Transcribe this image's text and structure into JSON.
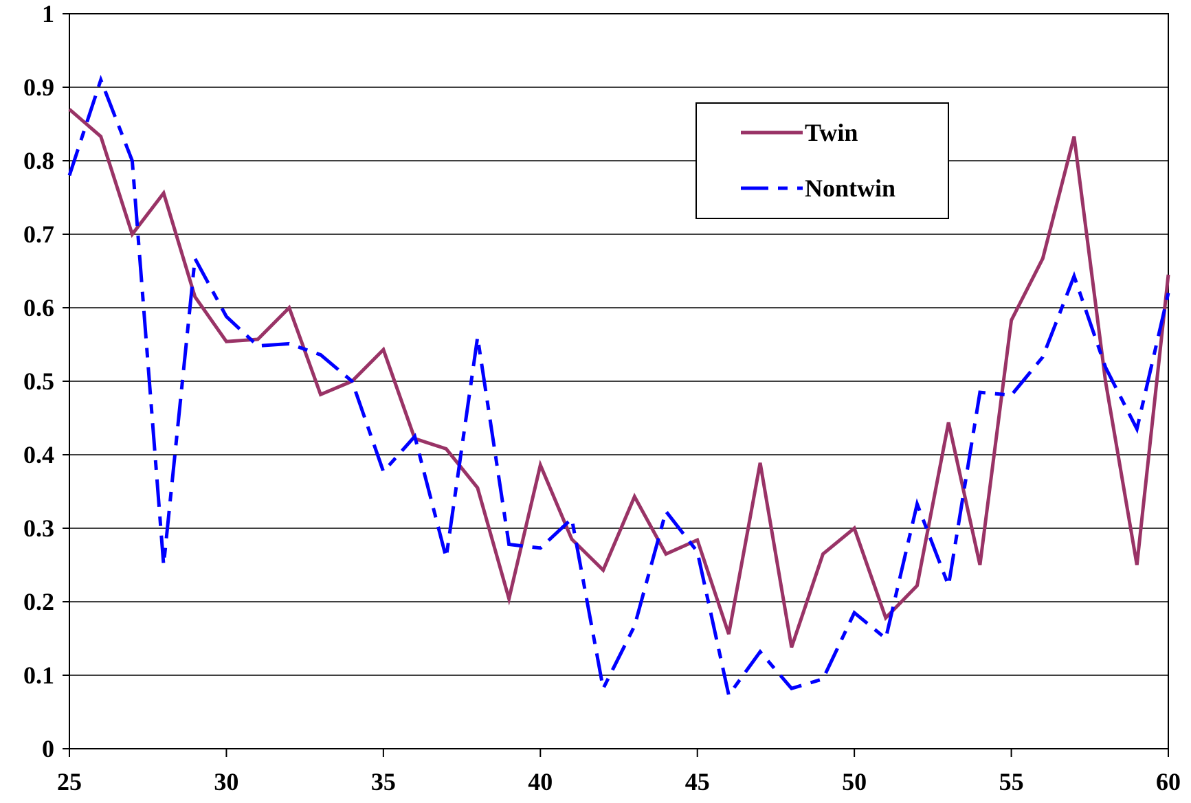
{
  "chart_data": {
    "type": "line",
    "title": "",
    "xlabel": "",
    "ylabel": "",
    "xlim": [
      25,
      60
    ],
    "ylim": [
      0,
      1
    ],
    "x_ticks": [
      25,
      30,
      35,
      40,
      45,
      50,
      55,
      60
    ],
    "y_ticks": [
      0,
      0.1,
      0.2,
      0.3,
      0.4,
      0.5,
      0.6,
      0.7,
      0.8,
      0.9,
      1
    ],
    "y_tick_labels": [
      "0",
      "0.1",
      "0.2",
      "0.3",
      "0.4",
      "0.5",
      "0.6",
      "0.7",
      "0.8",
      "0.9",
      "1"
    ],
    "x_tick_labels": [
      "25",
      "30",
      "35",
      "40",
      "45",
      "50",
      "55",
      "60"
    ],
    "grid": "horizontal",
    "legend": {
      "placement": "top-right",
      "entries": [
        "Twin",
        "Nontwin"
      ]
    },
    "x": [
      25,
      26,
      27,
      28,
      29,
      30,
      31,
      32,
      33,
      34,
      35,
      36,
      37,
      38,
      39,
      40,
      41,
      42,
      43,
      44,
      45,
      46,
      47,
      48,
      49,
      50,
      51,
      52,
      53,
      54,
      55,
      56,
      57,
      58,
      59,
      60
    ],
    "series": [
      {
        "name": "Twin",
        "color": "#993366",
        "style": "solid",
        "values": [
          0.87,
          0.833,
          0.7,
          0.756,
          0.615,
          0.554,
          0.557,
          0.6,
          0.482,
          0.5,
          0.543,
          0.422,
          0.408,
          0.355,
          0.204,
          0.386,
          0.285,
          0.243,
          0.343,
          0.265,
          0.284,
          0.156,
          0.389,
          0.138,
          0.265,
          0.3,
          0.178,
          0.222,
          0.444,
          0.25,
          0.583,
          0.667,
          0.833,
          0.5,
          0.25,
          0.645
        ]
      },
      {
        "name": "Nontwin",
        "color": "#0000ff",
        "style": "dashed",
        "values": [
          0.78,
          0.91,
          0.8,
          0.25,
          0.667,
          0.588,
          0.548,
          0.551,
          0.536,
          0.5,
          0.377,
          0.425,
          0.26,
          0.56,
          0.278,
          0.273,
          0.313,
          0.082,
          0.167,
          0.323,
          0.268,
          0.073,
          0.132,
          0.082,
          0.095,
          0.185,
          0.15,
          0.333,
          0.222,
          0.485,
          0.481,
          0.533,
          0.643,
          0.519,
          0.435,
          0.62
        ]
      }
    ]
  }
}
